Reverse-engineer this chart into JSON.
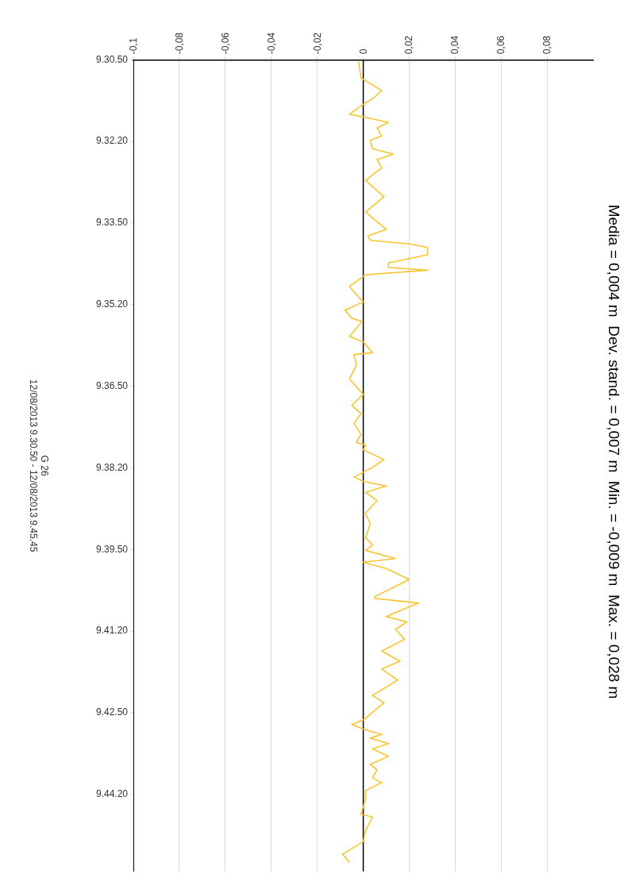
{
  "chart_data": {
    "type": "line",
    "orientation": "horizontal",
    "title": "Media = 0,004 m  Dev. stand. = 0,007 m  Min. = -0,009 m  Max. = 0,028 m",
    "annotations": [
      "G 26",
      "12/08/2013 9.30.50 - 12/08/2013 9.45.45"
    ],
    "x": [
      "2013-08-12T09:30:52",
      "2013-08-12T09:31:10",
      "2013-08-12T09:31:24",
      "2013-08-12T09:31:33",
      "2013-08-12T09:31:39",
      "2013-08-12T09:31:50",
      "2013-08-12T09:31:53",
      "2013-08-12T09:31:59",
      "2013-08-12T09:32:05",
      "2013-08-12T09:32:14",
      "2013-08-12T09:32:19",
      "2013-08-12T09:32:28",
      "2013-08-12T09:32:34",
      "2013-08-12T09:32:40",
      "2013-08-12T09:32:49",
      "2013-08-12T09:32:57",
      "2013-08-12T09:33:03",
      "2013-08-12T09:33:21",
      "2013-08-12T09:33:38",
      "2013-08-12T09:33:57",
      "2013-08-12T09:34:04",
      "2013-08-12T09:34:09",
      "2013-08-12T09:34:13",
      "2013-08-12T09:34:17",
      "2013-08-12T09:34:25",
      "2013-08-12T09:34:34",
      "2013-08-12T09:34:39",
      "2013-08-12T09:34:42",
      "2013-08-12T09:34:47",
      "2013-08-12T09:35:00",
      "2013-08-12T09:35:06",
      "2013-08-12T09:35:17",
      "2013-08-12T09:35:26",
      "2013-08-12T09:35:35",
      "2013-08-12T09:35:38",
      "2013-08-12T09:35:40",
      "2013-08-12T09:35:55",
      "2013-08-12T09:36:01",
      "2013-08-12T09:36:13",
      "2013-08-12T09:36:15",
      "2013-08-12T09:36:27",
      "2013-08-12T09:36:42",
      "2013-08-12T09:36:59",
      "2013-08-12T09:37:11",
      "2013-08-12T09:37:20",
      "2013-08-12T09:37:31",
      "2013-08-12T09:37:43",
      "2013-08-12T09:37:52",
      "2013-08-12T09:37:55",
      "2013-08-12T09:38:00",
      "2013-08-12T09:38:11",
      "2013-08-12T09:38:21",
      "2013-08-12T09:38:30",
      "2013-08-12T09:38:35",
      "2013-08-12T09:38:40",
      "2013-08-12T09:38:47",
      "2013-08-12T09:38:56",
      "2013-08-12T09:39:10",
      "2013-08-12T09:39:22",
      "2013-08-12T09:39:37",
      "2013-08-12T09:39:45",
      "2013-08-12T09:39:51",
      "2013-08-12T09:40:00",
      "2013-08-12T09:40:04",
      "2013-08-12T09:40:11",
      "2013-08-12T09:40:23",
      "2013-08-12T09:40:32",
      "2013-08-12T09:40:42",
      "2013-08-12T09:40:44",
      "2013-08-12T09:40:49",
      "2013-08-12T09:41:04",
      "2013-08-12T09:41:10",
      "2013-08-12T09:41:18",
      "2013-08-12T09:41:29",
      "2013-08-12T09:41:42",
      "2013-08-12T09:41:53",
      "2013-08-12T09:42:02",
      "2013-08-12T09:42:14",
      "2013-08-12T09:42:31",
      "2013-08-12T09:42:39",
      "2013-08-12T09:42:58",
      "2013-08-12T09:43:03",
      "2013-08-12T09:43:08",
      "2013-08-12T09:43:14",
      "2013-08-12T09:43:18",
      "2013-08-12T09:43:24",
      "2013-08-12T09:43:30",
      "2013-08-12T09:43:38",
      "2013-08-12T09:43:47",
      "2013-08-12T09:43:53",
      "2013-08-12T09:44:02",
      "2013-08-12T09:44:07",
      "2013-08-12T09:44:16",
      "2013-08-12T09:44:25",
      "2013-08-12T09:44:42",
      "2013-08-12T09:44:45",
      "2013-08-12T09:45:00",
      "2013-08-12T09:45:12",
      "2013-08-12T09:45:26",
      "2013-08-12T09:45:35"
    ],
    "series": [
      {
        "color": "#f7c531",
        "values": [
          -0.002,
          -0.001,
          0.008,
          0.004,
          0,
          -0.006,
          0,
          0.011,
          0.006,
          0.008,
          0.003,
          0.004,
          0.013,
          0.006,
          0.008,
          0.004,
          0.001,
          0.009,
          0.001,
          0.01,
          0.002,
          0.003,
          0.02,
          0.028,
          0.028,
          0.011,
          0.011,
          0.028,
          0.001,
          -0.006,
          -0.004,
          0,
          -0.008,
          -0.005,
          -0.001,
          -0.001,
          -0.006,
          0,
          0.004,
          -0.004,
          -0.003,
          -0.006,
          0,
          -0.005,
          -0.001,
          -0.004,
          -0.001,
          -0.003,
          0.001,
          0,
          0.009,
          0.003,
          -0.004,
          0,
          0.01,
          0.001,
          0.006,
          0.001,
          0.003,
          0.001,
          0.004,
          0.001,
          0.014,
          0,
          0.01,
          0.02,
          0.013,
          0.005,
          0.005,
          0.024,
          0.01,
          0.019,
          0.014,
          0.018,
          0.008,
          0.016,
          0.008,
          0.015,
          0.004,
          0.009,
          0,
          -0.005,
          0,
          0.008,
          0.003,
          0.011,
          0.004,
          0.011,
          0.003,
          0.006,
          0.004,
          0.008,
          0.001,
          0.001,
          -0.001,
          0.004,
          0.001,
          0,
          -0.009,
          -0.006
        ]
      }
    ],
    "ylim": [
      "2013-08-12T09:45:45",
      "2013-08-12T09:30:50"
    ],
    "yticks": [
      {
        "value": "2013-08-12T09:30:50",
        "label": "9.30.50"
      },
      {
        "value": "2013-08-12T09:32:20",
        "label": "9.32.20"
      },
      {
        "value": "2013-08-12T09:33:50",
        "label": "9.33.50"
      },
      {
        "value": "2013-08-12T09:35:20",
        "label": "9.35.20"
      },
      {
        "value": "2013-08-12T09:36:50",
        "label": "9.36.50"
      },
      {
        "value": "2013-08-12T09:38:20",
        "label": "9.38.20"
      },
      {
        "value": "2013-08-12T09:39:50",
        "label": "9.39.50"
      },
      {
        "value": "2013-08-12T09:41:20",
        "label": "9.41.20"
      },
      {
        "value": "2013-08-12T09:42:50",
        "label": "9.42.50"
      },
      {
        "value": "2013-08-12T09:44:20",
        "label": "9.44.20"
      }
    ],
    "xlim": [
      -0.1,
      0.1
    ],
    "xticks": [
      {
        "value": -0.1,
        "label": "-0,1"
      },
      {
        "value": -0.08,
        "label": "-0,08"
      },
      {
        "value": -0.06,
        "label": "-0,06"
      },
      {
        "value": -0.04,
        "label": "-0,04"
      },
      {
        "value": -0.02,
        "label": "-0,02"
      },
      0,
      {
        "value": 0.02,
        "label": "0,02"
      },
      {
        "value": 0.04,
        "label": "0,04"
      },
      {
        "value": 0.06,
        "label": "0,06"
      },
      {
        "value": 0.08,
        "label": "0,08"
      }
    ],
    "ref_lines": [
      {
        "axis": "x",
        "value": 0,
        "color": "#000000"
      }
    ],
    "grid": "x",
    "legend": false,
    "marker": "none",
    "line_style": "solid"
  }
}
